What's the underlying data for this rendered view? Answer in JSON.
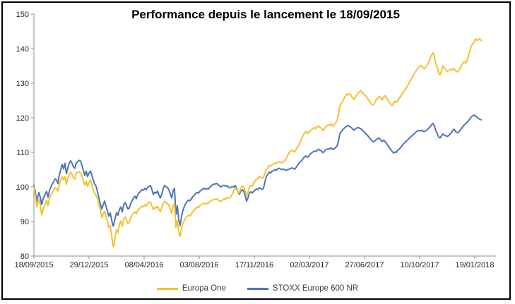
{
  "window": {
    "background": "#FFFFFF",
    "border_color": "#000000"
  },
  "chart_data": {
    "type": "line",
    "title": "Performance depuis le lancement le 18/09/2015",
    "xlabel": "",
    "ylabel": "",
    "ylim": [
      80,
      150
    ],
    "y_ticks": [
      80,
      90,
      100,
      110,
      120,
      130,
      140,
      150
    ],
    "x_tick_labels": [
      "18/09/2015",
      "29/12/2015",
      "08/04/2016",
      "03/08/2016",
      "17/11/2016",
      "02/03/2017",
      "27/06/2017",
      "10/10/2017",
      "19/01/2018"
    ],
    "x_tick_offsets": [
      0,
      78,
      156,
      234,
      312,
      390,
      468,
      546,
      624
    ],
    "x_max_offset": 654,
    "grid": false,
    "legend_position": "bottom",
    "axis_color": "#8C8C8C",
    "tick_label_color": "#262626",
    "series": [
      {
        "name": "Europa One",
        "color": "#F5C12E"
      },
      {
        "name": "STOXX Europe 600 NR",
        "color": "#4B76B8"
      }
    ],
    "points_format": [
      "x_offset",
      "Europa One",
      "STOXX Europe 600 NR"
    ],
    "points": [
      [
        0,
        100,
        100.5
      ],
      [
        2,
        97.5,
        98.5
      ],
      [
        4,
        94.2,
        95.8
      ],
      [
        7,
        96.3,
        98.4
      ],
      [
        9,
        95,
        97
      ],
      [
        11,
        91.9,
        94.9
      ],
      [
        13,
        93.5,
        96.5
      ],
      [
        15,
        94.5,
        97.5
      ],
      [
        18,
        96.2,
        98.7
      ],
      [
        20,
        94.6,
        97
      ],
      [
        22,
        96.8,
        99
      ],
      [
        25,
        98,
        100.5
      ],
      [
        28,
        99,
        101.5
      ],
      [
        30,
        99.8,
        102.3
      ],
      [
        32,
        99.5,
        102
      ],
      [
        34,
        98.8,
        101
      ],
      [
        36,
        100.8,
        103.5
      ],
      [
        38,
        102,
        105
      ],
      [
        40,
        102.9,
        106.5
      ],
      [
        42,
        102,
        105.2
      ],
      [
        44,
        103,
        106.8
      ],
      [
        46,
        100.8,
        103.8
      ],
      [
        48,
        102.5,
        105.5
      ],
      [
        50,
        103.6,
        106.8
      ],
      [
        52,
        104.4,
        107.6
      ],
      [
        54,
        103.6,
        106.8
      ],
      [
        56,
        102.6,
        105.8
      ],
      [
        58,
        102.3,
        105.4
      ],
      [
        60,
        104,
        106.9
      ],
      [
        62,
        104.2,
        107.3
      ],
      [
        64,
        104.4,
        107.7
      ],
      [
        66,
        104,
        107.5
      ],
      [
        68,
        103.2,
        106.3
      ],
      [
        70,
        101.8,
        104.8
      ],
      [
        72,
        100.5,
        103.3
      ],
      [
        74,
        101.6,
        104.6
      ],
      [
        76,
        100.2,
        103
      ],
      [
        78,
        101.2,
        104
      ],
      [
        80,
        102,
        104.6
      ],
      [
        82,
        100.7,
        103.4
      ],
      [
        84,
        99.2,
        102
      ],
      [
        86,
        98.2,
        100.8
      ],
      [
        88,
        97.6,
        100.2
      ],
      [
        90,
        96.4,
        98.6
      ],
      [
        92,
        94.8,
        96.8
      ],
      [
        94,
        93.2,
        95.2
      ],
      [
        96,
        91.2,
        93.6
      ],
      [
        98,
        92,
        94.8
      ],
      [
        100,
        92.9,
        95.9
      ],
      [
        102,
        91.5,
        94.5
      ],
      [
        104,
        90,
        93
      ],
      [
        106,
        88.3,
        91.5
      ],
      [
        108,
        88.8,
        92.5
      ],
      [
        110,
        86,
        90.5
      ],
      [
        112,
        83,
        88.7
      ],
      [
        113,
        82.7,
        89
      ],
      [
        115,
        85.5,
        91
      ],
      [
        117,
        87.6,
        92.6
      ],
      [
        119,
        86.8,
        91.8
      ],
      [
        121,
        89,
        93.5
      ],
      [
        123,
        90.2,
        94.2
      ],
      [
        125,
        88.6,
        92.8
      ],
      [
        127,
        90.6,
        94.8
      ],
      [
        129,
        91.3,
        95.5
      ],
      [
        131,
        90.5,
        94.7
      ],
      [
        133,
        89.4,
        93.6
      ],
      [
        135,
        89.7,
        93.9
      ],
      [
        137,
        91,
        95.2
      ],
      [
        139,
        91.8,
        96
      ],
      [
        141,
        92.4,
        96.8
      ],
      [
        143,
        92.8,
        97.3
      ],
      [
        145,
        92.2,
        96.6
      ],
      [
        147,
        93.2,
        97.8
      ],
      [
        149,
        93.7,
        98.3
      ],
      [
        151,
        94,
        98.7
      ],
      [
        153,
        94.4,
        99.2
      ],
      [
        155,
        94.2,
        99
      ],
      [
        157,
        94.8,
        99.6
      ],
      [
        159,
        94.5,
        99.2
      ],
      [
        161,
        95.2,
        99.9
      ],
      [
        163,
        95.5,
        100.2
      ],
      [
        165,
        95.6,
        100.4
      ],
      [
        167,
        94.6,
        99.3
      ],
      [
        169,
        93.5,
        97.8
      ],
      [
        171,
        94.1,
        98.5
      ],
      [
        173,
        93.9,
        98.2
      ],
      [
        175,
        94.4,
        98.8
      ],
      [
        177,
        93.4,
        97.6
      ],
      [
        179,
        92.9,
        96.8
      ],
      [
        181,
        94,
        97.9
      ],
      [
        183,
        95.3,
        99.5
      ],
      [
        185,
        95.8,
        100.4
      ],
      [
        187,
        95.5,
        100.1
      ],
      [
        189,
        95.2,
        99.8
      ],
      [
        191,
        94.7,
        99.2
      ],
      [
        193,
        93.6,
        98
      ],
      [
        195,
        92.4,
        96.8
      ],
      [
        197,
        94.6,
        98.9
      ],
      [
        199,
        95.2,
        99.6
      ],
      [
        201,
        88.3,
        92
      ],
      [
        203,
        90.3,
        94.5
      ],
      [
        205,
        86.8,
        90.5
      ],
      [
        207,
        85.7,
        88.8
      ],
      [
        209,
        88,
        91.5
      ],
      [
        211,
        89.4,
        93.2
      ],
      [
        213,
        90.4,
        94.4
      ],
      [
        215,
        91,
        95.2
      ],
      [
        217,
        91.5,
        95.8
      ],
      [
        219,
        91.8,
        96.2
      ],
      [
        221,
        91.6,
        96
      ],
      [
        223,
        92.2,
        96.6
      ],
      [
        225,
        92.9,
        97.2
      ],
      [
        227,
        93.3,
        97.6
      ],
      [
        229,
        93.8,
        98.1
      ],
      [
        231,
        94.2,
        98.4
      ],
      [
        233,
        94,
        98.2
      ],
      [
        235,
        94.6,
        98.8
      ],
      [
        237,
        94.9,
        99.1
      ],
      [
        239,
        95.1,
        99.4
      ],
      [
        241,
        95.3,
        99.6
      ],
      [
        243,
        95,
        99.3
      ],
      [
        245,
        95.2,
        99.5
      ],
      [
        247,
        95.3,
        99.4
      ],
      [
        249,
        95.7,
        99.9
      ],
      [
        251,
        96,
        100.3
      ],
      [
        253,
        96.2,
        100.6
      ],
      [
        255,
        96.4,
        100.8
      ],
      [
        257,
        96.4,
        100.9
      ],
      [
        259,
        96.5,
        101
      ],
      [
        261,
        96.2,
        100.6
      ],
      [
        263,
        95.9,
        100.2
      ],
      [
        265,
        95.8,
        100
      ],
      [
        267,
        96.2,
        100.3
      ],
      [
        269,
        96.6,
        100.5
      ],
      [
        271,
        96.4,
        100.2
      ],
      [
        273,
        96.9,
        100.4
      ],
      [
        275,
        96.7,
        100
      ],
      [
        277,
        96.8,
        99.7
      ],
      [
        279,
        97.3,
        99.9
      ],
      [
        281,
        98,
        100.1
      ],
      [
        283,
        98.9,
        100
      ],
      [
        285,
        99.8,
        100.4
      ],
      [
        287,
        99.3,
        99.6
      ],
      [
        289,
        98.5,
        98.4
      ],
      [
        291,
        98.3,
        97.9
      ],
      [
        293,
        99.6,
        98.7
      ],
      [
        295,
        100.3,
        99.2
      ],
      [
        297,
        99.9,
        98.8
      ],
      [
        299,
        98.8,
        97.5
      ],
      [
        301,
        97.4,
        95.9
      ],
      [
        303,
        98.4,
        96.8
      ],
      [
        305,
        99.9,
        98.2
      ],
      [
        307,
        100.4,
        98.6
      ],
      [
        309,
        100.2,
        98.2
      ],
      [
        311,
        101.1,
        98.7
      ],
      [
        313,
        101.8,
        99.1
      ],
      [
        315,
        102.2,
        99.4
      ],
      [
        317,
        102.4,
        99.2
      ],
      [
        319,
        103,
        99.8
      ],
      [
        321,
        102.8,
        99.5
      ],
      [
        323,
        102.6,
        99.3
      ],
      [
        325,
        102.8,
        99.6
      ],
      [
        327,
        103.9,
        101.5
      ],
      [
        329,
        104.9,
        103
      ],
      [
        331,
        105.6,
        103.6
      ],
      [
        333,
        106.2,
        104.3
      ],
      [
        335,
        106,
        104
      ],
      [
        337,
        106.4,
        104.5
      ],
      [
        339,
        106.6,
        104.7
      ],
      [
        341,
        106.9,
        105
      ],
      [
        343,
        106.7,
        104.8
      ],
      [
        345,
        107.1,
        105.2
      ],
      [
        347,
        107.3,
        105.4
      ],
      [
        349,
        107.1,
        105.2
      ],
      [
        351,
        107,
        105
      ],
      [
        353,
        107.3,
        105.2
      ],
      [
        355,
        107.6,
        105
      ],
      [
        357,
        108.2,
        104.8
      ],
      [
        359,
        109,
        105
      ],
      [
        361,
        109.8,
        105.1
      ],
      [
        363,
        110.3,
        105.3
      ],
      [
        365,
        110.6,
        105.5
      ],
      [
        367,
        110.4,
        105.4
      ],
      [
        369,
        110.1,
        105.1
      ],
      [
        371,
        110.8,
        105.6
      ],
      [
        373,
        111.4,
        106.2
      ],
      [
        375,
        112.1,
        106.8
      ],
      [
        377,
        113,
        107.2
      ],
      [
        379,
        113.9,
        107.6
      ],
      [
        381,
        114.8,
        108.2
      ],
      [
        383,
        115.6,
        108.7
      ],
      [
        385,
        116.1,
        109
      ],
      [
        387,
        115.4,
        108.6
      ],
      [
        389,
        115.8,
        108.9
      ],
      [
        391,
        116.2,
        109.5
      ],
      [
        393,
        116.5,
        109.8
      ],
      [
        395,
        116.9,
        110.1
      ],
      [
        397,
        117.2,
        110.4
      ],
      [
        399,
        116.8,
        110.2
      ],
      [
        401,
        117.4,
        110.7
      ],
      [
        403,
        117.6,
        110.9
      ],
      [
        405,
        117.2,
        110.6
      ],
      [
        407,
        117,
        110.4
      ],
      [
        409,
        116.3,
        109.9
      ],
      [
        411,
        116.8,
        110.3
      ],
      [
        413,
        117.4,
        110.8
      ],
      [
        415,
        117.7,
        110.9
      ],
      [
        417,
        118,
        111.1
      ],
      [
        419,
        117.8,
        111
      ],
      [
        421,
        118.3,
        111.3
      ],
      [
        423,
        117.6,
        110.8
      ],
      [
        425,
        117.9,
        111
      ],
      [
        427,
        118.5,
        111.4
      ],
      [
        429,
        119.2,
        111.8
      ],
      [
        431,
        120.8,
        113.2
      ],
      [
        433,
        123.4,
        115.4
      ],
      [
        435,
        124.2,
        116
      ],
      [
        437,
        124.8,
        116.5
      ],
      [
        439,
        125.6,
        116.9
      ],
      [
        441,
        126.3,
        117.3
      ],
      [
        443,
        126.9,
        117.6
      ],
      [
        445,
        126.6,
        117.8
      ],
      [
        447,
        127,
        117.5
      ],
      [
        449,
        126.5,
        117.2
      ],
      [
        451,
        125.8,
        116.8
      ],
      [
        453,
        125.3,
        116.4
      ],
      [
        455,
        126,
        116.8
      ],
      [
        457,
        126.6,
        117
      ],
      [
        459,
        127.2,
        117.2
      ],
      [
        461,
        127.5,
        117
      ],
      [
        463,
        127.8,
        116.8
      ],
      [
        465,
        127.3,
        116.4
      ],
      [
        467,
        126.8,
        116
      ],
      [
        469,
        126.4,
        115.6
      ],
      [
        471,
        126,
        115.2
      ],
      [
        473,
        125.4,
        114.7
      ],
      [
        475,
        124.8,
        114.2
      ],
      [
        477,
        124.2,
        113.7
      ],
      [
        479,
        123.7,
        113.3
      ],
      [
        481,
        123.9,
        113
      ],
      [
        483,
        124.6,
        113.4
      ],
      [
        485,
        125.3,
        113.8
      ],
      [
        487,
        125.8,
        114
      ],
      [
        489,
        126.2,
        114.1
      ],
      [
        491,
        125.6,
        113.6
      ],
      [
        493,
        125.2,
        113.1
      ],
      [
        495,
        126,
        113.5
      ],
      [
        497,
        126.4,
        113.2
      ],
      [
        499,
        125.8,
        112.6
      ],
      [
        501,
        125.2,
        112
      ],
      [
        503,
        124.6,
        111.4
      ],
      [
        505,
        124,
        110.8
      ],
      [
        507,
        123.6,
        110.3
      ],
      [
        509,
        124.2,
        109.8
      ],
      [
        511,
        124.8,
        110.1
      ],
      [
        513,
        124.4,
        110
      ],
      [
        515,
        125,
        110.6
      ],
      [
        517,
        125.5,
        110.9
      ],
      [
        519,
        126.1,
        111.4
      ],
      [
        521,
        126.8,
        111.9
      ],
      [
        523,
        127.4,
        112.4
      ],
      [
        525,
        128,
        112.8
      ],
      [
        527,
        128.6,
        113.2
      ],
      [
        529,
        129.3,
        113.6
      ],
      [
        531,
        130,
        114
      ],
      [
        533,
        130.8,
        114.4
      ],
      [
        535,
        131.5,
        114.8
      ],
      [
        537,
        132.2,
        115.1
      ],
      [
        539,
        133,
        115.5
      ],
      [
        541,
        133.6,
        115.9
      ],
      [
        543,
        134.2,
        116.2
      ],
      [
        545,
        134.7,
        116.3
      ],
      [
        547,
        135,
        116.2
      ],
      [
        549,
        135.1,
        116.4
      ],
      [
        551,
        134.4,
        116.1
      ],
      [
        553,
        134.2,
        116
      ],
      [
        555,
        134.8,
        116.3
      ],
      [
        557,
        135.4,
        116.6
      ],
      [
        559,
        136.2,
        117
      ],
      [
        561,
        137.2,
        117.5
      ],
      [
        563,
        138.2,
        118
      ],
      [
        565,
        138.8,
        118.4
      ],
      [
        567,
        137.4,
        117.6
      ],
      [
        569,
        135.6,
        116.2
      ],
      [
        571,
        134.4,
        115.4
      ],
      [
        573,
        132.9,
        114.4
      ],
      [
        575,
        132.4,
        114.2
      ],
      [
        577,
        133.6,
        114.8
      ],
      [
        579,
        135,
        115.3
      ],
      [
        581,
        134.4,
        115
      ],
      [
        583,
        134,
        114.8
      ],
      [
        585,
        133.4,
        114.6
      ],
      [
        587,
        133.6,
        114.8
      ],
      [
        589,
        134,
        115.3
      ],
      [
        591,
        133.8,
        115.7
      ],
      [
        593,
        134.2,
        116.4
      ],
      [
        595,
        134.1,
        116.7
      ],
      [
        597,
        133.6,
        116
      ],
      [
        599,
        133.3,
        115.7
      ],
      [
        601,
        133.5,
        115.8
      ],
      [
        603,
        134.3,
        116.3
      ],
      [
        605,
        135.1,
        116.9
      ],
      [
        607,
        135.8,
        117.4
      ],
      [
        609,
        136.3,
        117.9
      ],
      [
        611,
        135.8,
        118.3
      ],
      [
        613,
        136.5,
        118.6
      ],
      [
        615,
        137.8,
        119.1
      ],
      [
        617,
        139.3,
        119.7
      ],
      [
        619,
        140.7,
        120.2
      ],
      [
        621,
        141.4,
        120.6
      ],
      [
        623,
        141.9,
        120.8
      ],
      [
        625,
        142.8,
        120.5
      ],
      [
        627,
        142.4,
        120.2
      ],
      [
        629,
        142.6,
        119.9
      ],
      [
        631,
        142.9,
        119.6
      ],
      [
        633,
        142.3,
        119.4
      ]
    ]
  }
}
